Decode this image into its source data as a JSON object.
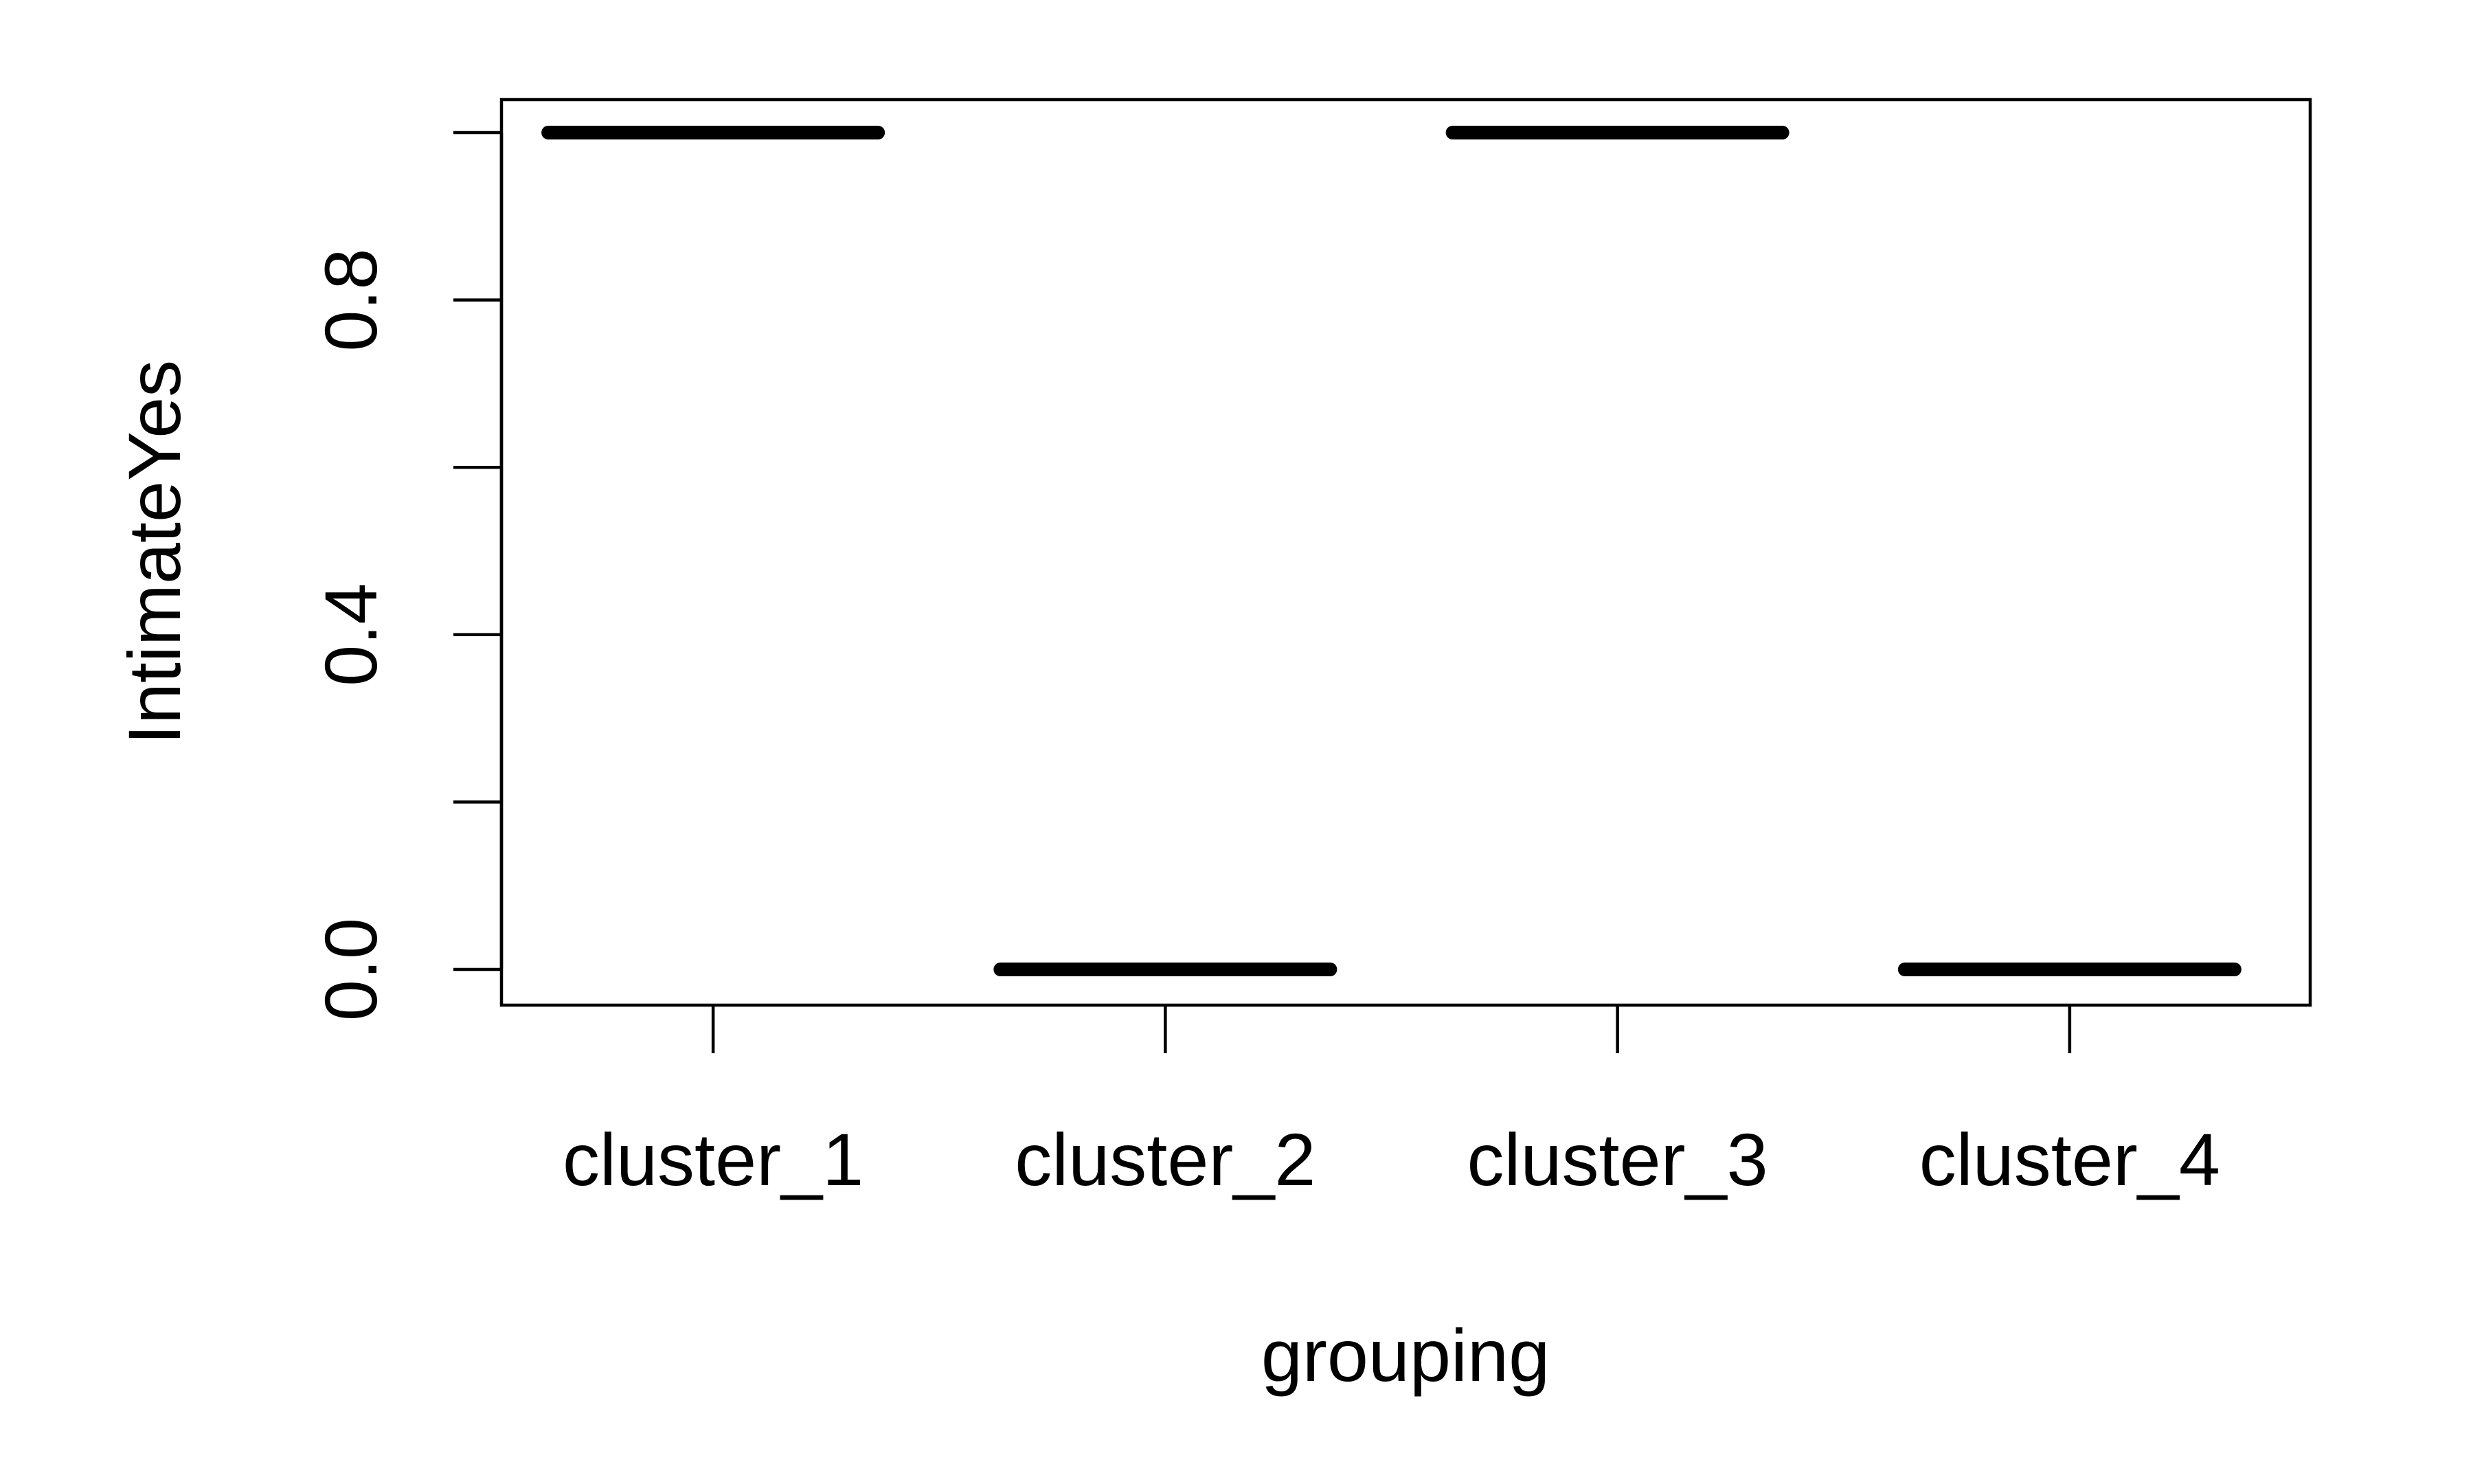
{
  "chart_data": {
    "type": "boxplot",
    "categories": [
      "cluster_1",
      "cluster_2",
      "cluster_3",
      "cluster_4"
    ],
    "values": [
      1,
      0,
      1,
      0
    ],
    "xlabel": "grouping",
    "ylabel": "IntimateYes",
    "ylim": [
      -0.04,
      1.04
    ],
    "yticks": [
      0,
      0.2,
      0.4,
      0.6,
      0.8,
      1.0
    ],
    "ytick_labels": [
      "0.0",
      "",
      "0.4",
      "",
      "0.8",
      ""
    ],
    "grid": false,
    "legend": "none"
  }
}
